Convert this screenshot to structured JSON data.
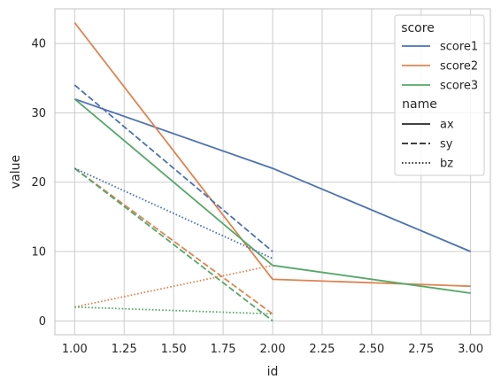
{
  "chart_data": {
    "type": "line",
    "xlabel": "id",
    "ylabel": "value",
    "xlim": [
      0.9,
      3.1
    ],
    "ylim": [
      -2,
      45
    ],
    "xticks": [
      1.0,
      1.25,
      1.5,
      1.75,
      2.0,
      2.25,
      2.5,
      2.75,
      3.0
    ],
    "xtick_labels": [
      "1.00",
      "1.25",
      "1.50",
      "1.75",
      "2.00",
      "2.25",
      "2.50",
      "2.75",
      "3.00"
    ],
    "yticks": [
      0,
      10,
      20,
      30,
      40
    ],
    "ytick_labels": [
      "0",
      "10",
      "20",
      "30",
      "40"
    ],
    "grid": true,
    "legend": {
      "placement": "top-right",
      "hue_title": "score",
      "hue_entries": [
        {
          "label": "score1",
          "color": "#4c72b0"
        },
        {
          "label": "score2",
          "color": "#dd8452"
        },
        {
          "label": "score3",
          "color": "#55a868"
        }
      ],
      "style_title": "name",
      "style_entries": [
        {
          "label": "ax",
          "dash": "solid"
        },
        {
          "label": "sy",
          "dash": "dashed"
        },
        {
          "label": "bz",
          "dash": "dotted"
        }
      ]
    },
    "series": [
      {
        "score": "score1",
        "name": "ax",
        "color": "#4c72b0",
        "dash": "solid",
        "x": [
          1,
          2,
          3
        ],
        "y": [
          32,
          22,
          10
        ]
      },
      {
        "score": "score2",
        "name": "ax",
        "color": "#dd8452",
        "dash": "solid",
        "x": [
          1,
          2,
          3
        ],
        "y": [
          43,
          6,
          5
        ]
      },
      {
        "score": "score3",
        "name": "ax",
        "color": "#55a868",
        "dash": "solid",
        "x": [
          1,
          2,
          3
        ],
        "y": [
          32,
          8,
          4
        ]
      },
      {
        "score": "score1",
        "name": "sy",
        "color": "#4c72b0",
        "dash": "dashed",
        "x": [
          1,
          2
        ],
        "y": [
          34,
          10
        ]
      },
      {
        "score": "score2",
        "name": "sy",
        "color": "#dd8452",
        "dash": "dashed",
        "x": [
          1,
          2
        ],
        "y": [
          22,
          1
        ]
      },
      {
        "score": "score3",
        "name": "sy",
        "color": "#55a868",
        "dash": "dashed",
        "x": [
          1,
          2
        ],
        "y": [
          22,
          0
        ]
      },
      {
        "score": "score1",
        "name": "bz",
        "color": "#4c72b0",
        "dash": "dotted",
        "x": [
          1,
          2
        ],
        "y": [
          22,
          9
        ]
      },
      {
        "score": "score2",
        "name": "bz",
        "color": "#dd8452",
        "dash": "dotted",
        "x": [
          1,
          2
        ],
        "y": [
          2,
          8
        ]
      },
      {
        "score": "score3",
        "name": "bz",
        "color": "#55a868",
        "dash": "dotted",
        "x": [
          1,
          2
        ],
        "y": [
          2,
          1
        ]
      }
    ]
  }
}
